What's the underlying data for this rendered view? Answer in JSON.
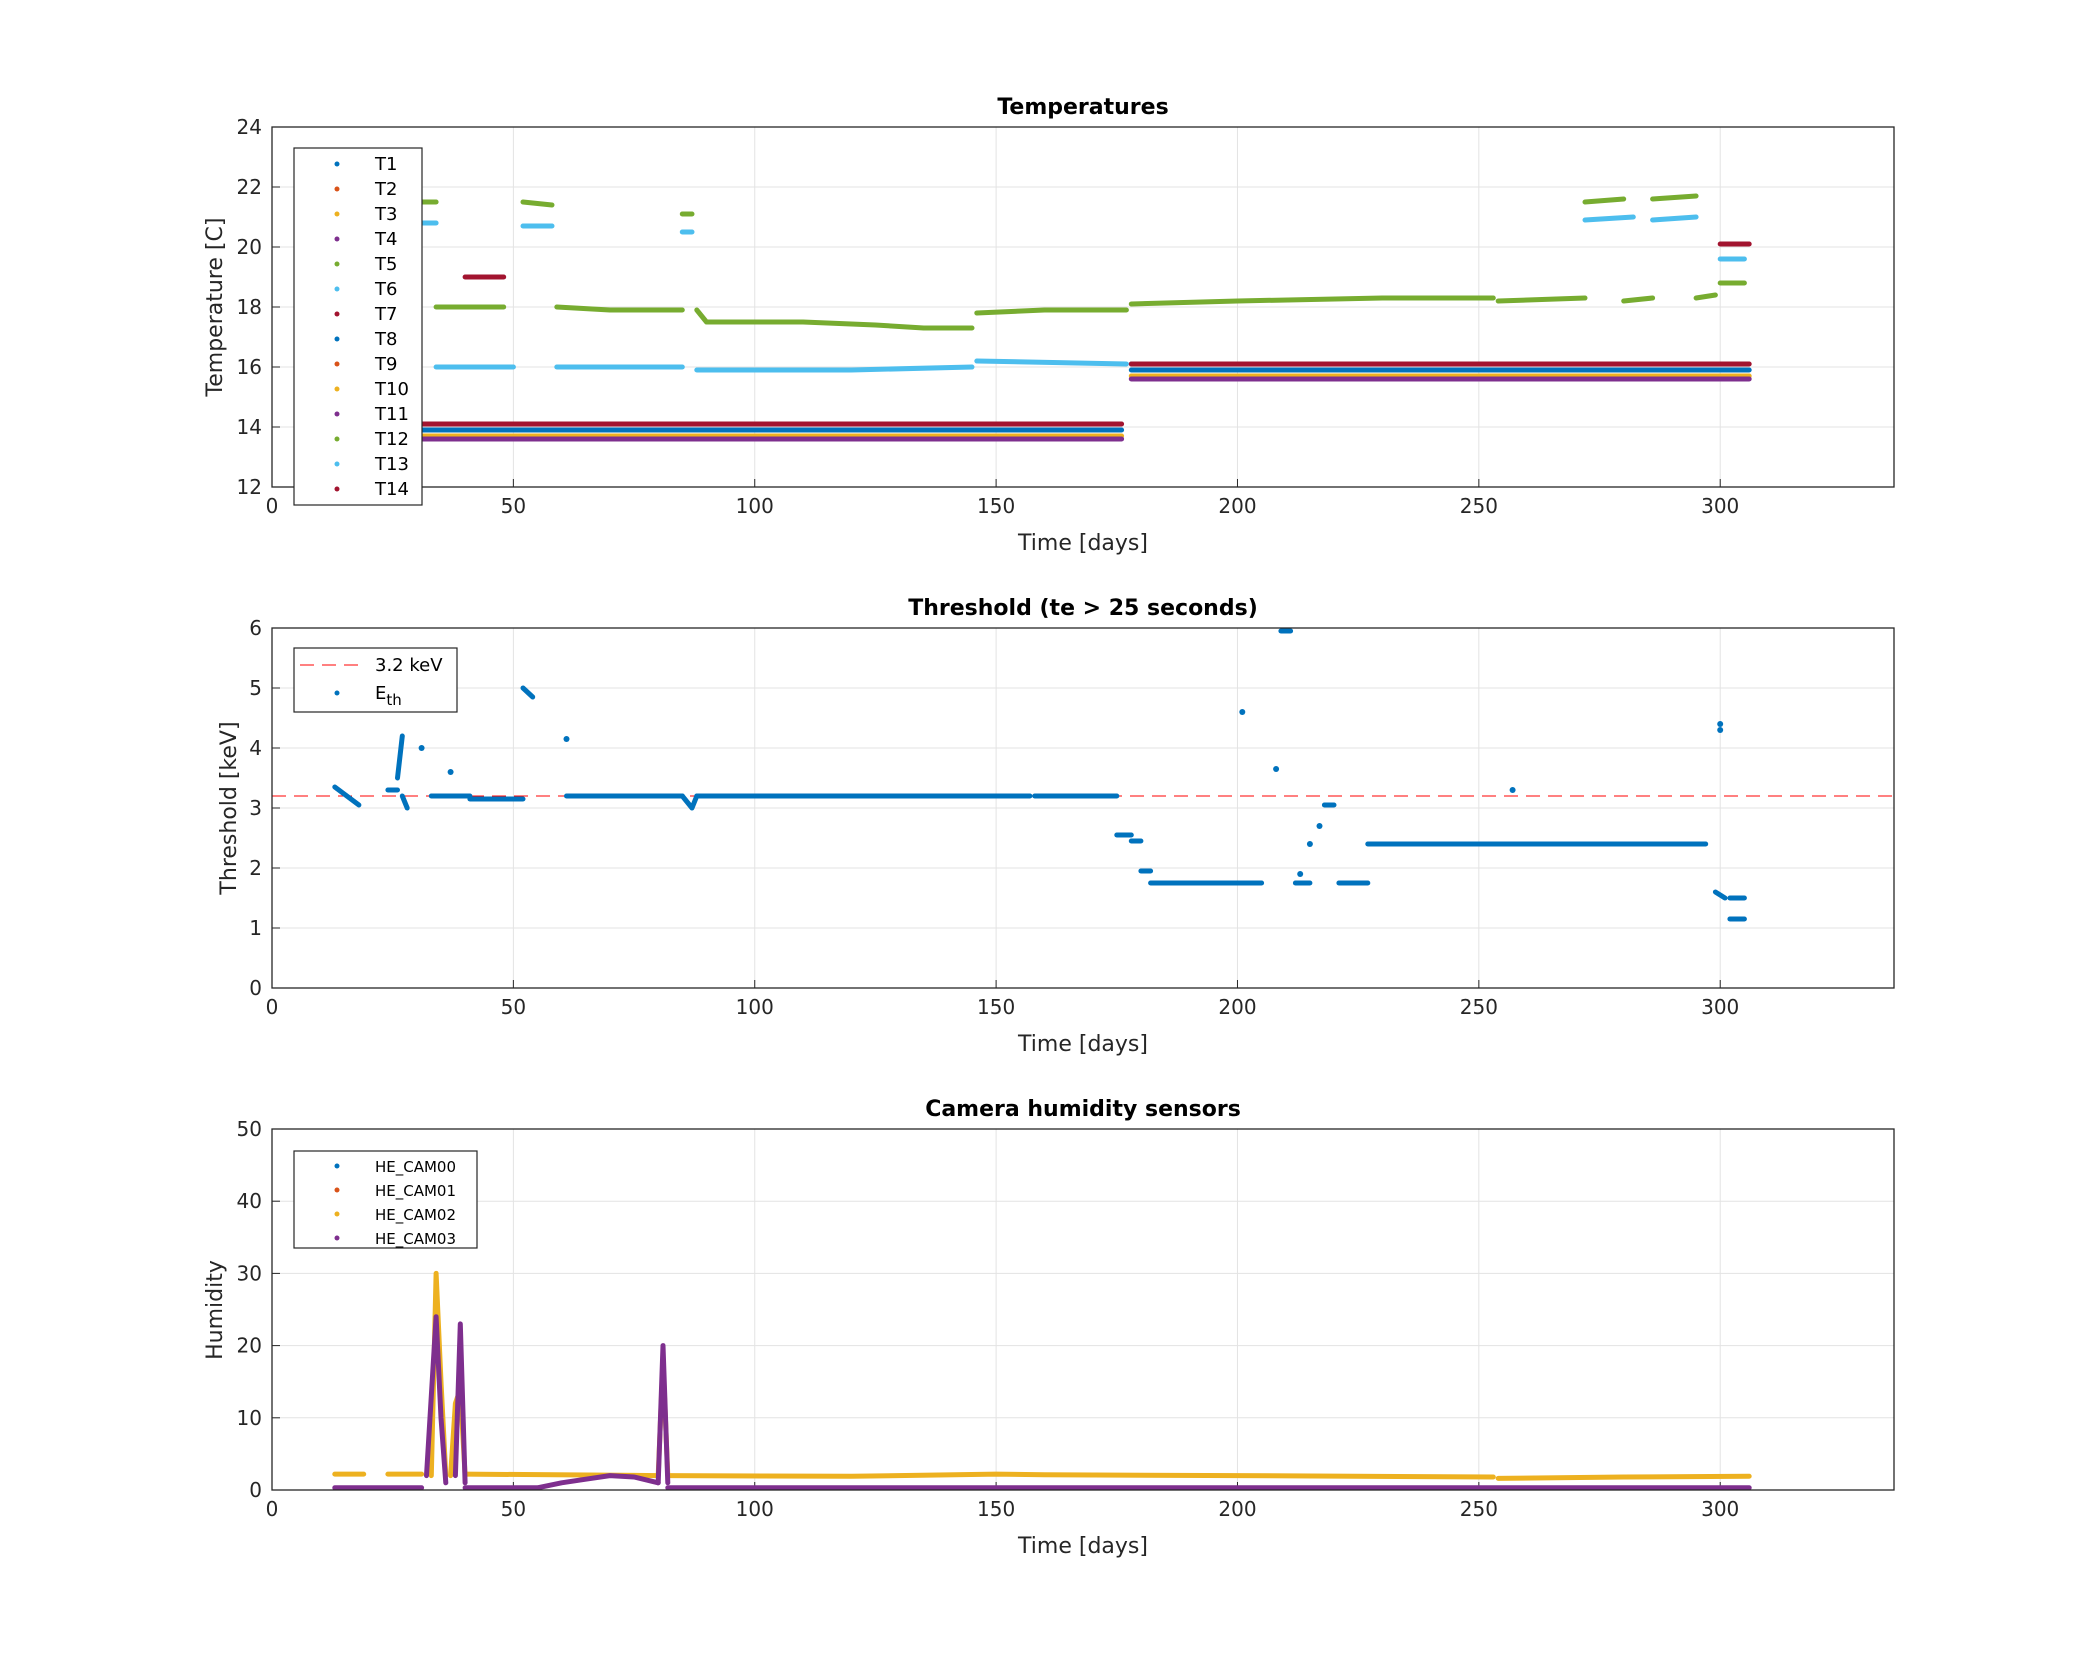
{
  "chart_data": [
    {
      "type": "scatter",
      "title": "Temperatures",
      "xlabel": "Time [days]",
      "ylabel": "Temperature [C]",
      "xlim": [
        0,
        336
      ],
      "ylim": [
        12,
        24
      ],
      "xticks": [
        "0",
        "50",
        "100",
        "150",
        "200",
        "250",
        "300"
      ],
      "yticks": [
        "12",
        "14",
        "16",
        "18",
        "20",
        "22",
        "24"
      ],
      "grid": true,
      "legend_position": "top-left",
      "legend": [
        "T1",
        "T2",
        "T3",
        "T4",
        "T5",
        "T6",
        "T7",
        "T8",
        "T9",
        "T10",
        "T11",
        "T12",
        "T13",
        "T14"
      ],
      "series": [
        {
          "name": "T5",
          "color": "#77AC30",
          "segments": [
            [
              [
                31,
                21.5
              ],
              [
                34,
                21.5
              ]
            ],
            [
              [
                34,
                18.0
              ],
              [
                48,
                18.0
              ]
            ],
            [
              [
                52,
                21.5
              ],
              [
                58,
                21.4
              ]
            ],
            [
              [
                59,
                18.0
              ],
              [
                70,
                17.9
              ],
              [
                85,
                17.9
              ]
            ],
            [
              [
                85,
                21.1
              ],
              [
                87,
                21.1
              ]
            ],
            [
              [
                88,
                17.9
              ],
              [
                90,
                17.5
              ],
              [
                110,
                17.5
              ],
              [
                125,
                17.4
              ],
              [
                135,
                17.3
              ],
              [
                145,
                17.3
              ]
            ],
            [
              [
                146,
                17.8
              ],
              [
                160,
                17.9
              ],
              [
                177,
                17.9
              ]
            ],
            [
              [
                178,
                18.1
              ],
              [
                200,
                18.2
              ],
              [
                230,
                18.3
              ],
              [
                253,
                18.3
              ]
            ],
            [
              [
                254,
                18.2
              ],
              [
                272,
                18.3
              ]
            ],
            [
              [
                272,
                21.5
              ],
              [
                280,
                21.6
              ]
            ],
            [
              [
                280,
                18.2
              ],
              [
                286,
                18.3
              ]
            ],
            [
              [
                286,
                21.6
              ],
              [
                295,
                21.7
              ]
            ],
            [
              [
                295,
                18.3
              ],
              [
                299,
                18.4
              ]
            ],
            [
              [
                300,
                18.8
              ],
              [
                305,
                18.8
              ]
            ]
          ]
        },
        {
          "name": "T6",
          "color": "#4DBEEE",
          "segments": [
            [
              [
                31,
                20.8
              ],
              [
                34,
                20.8
              ]
            ],
            [
              [
                34,
                16.0
              ],
              [
                50,
                16.0
              ]
            ],
            [
              [
                52,
                20.7
              ],
              [
                58,
                20.7
              ]
            ],
            [
              [
                59,
                16.0
              ],
              [
                85,
                16.0
              ]
            ],
            [
              [
                85,
                20.5
              ],
              [
                87,
                20.5
              ]
            ],
            [
              [
                88,
                15.9
              ],
              [
                120,
                15.9
              ],
              [
                145,
                16.0
              ]
            ],
            [
              [
                146,
                16.2
              ],
              [
                177,
                16.1
              ]
            ],
            [
              [
                178,
                16.1
              ],
              [
                253,
                16.1
              ]
            ],
            [
              [
                254,
                16.1
              ],
              [
                272,
                16.1
              ]
            ],
            [
              [
                272,
                20.9
              ],
              [
                282,
                21.0
              ]
            ],
            [
              [
                286,
                20.9
              ],
              [
                295,
                21.0
              ]
            ],
            [
              [
                295,
                16.1
              ],
              [
                300,
                16.1
              ]
            ],
            [
              [
                300,
                19.6
              ],
              [
                305,
                19.6
              ]
            ],
            [
              [
                300,
                16.1
              ],
              [
                305,
                16.1
              ]
            ]
          ]
        },
        {
          "name": "T1",
          "color": "#0072BD",
          "segments": [
            [
              [
                31,
                13.9
              ],
              [
                176,
                13.9
              ]
            ],
            [
              [
                178,
                15.9
              ],
              [
                306,
                15.9
              ]
            ]
          ]
        },
        {
          "name": "T3",
          "color": "#EDB120",
          "segments": [
            [
              [
                31,
                13.7
              ],
              [
                176,
                13.7
              ]
            ],
            [
              [
                178,
                15.7
              ],
              [
                306,
                15.7
              ]
            ]
          ]
        },
        {
          "name": "T4",
          "color": "#7E2F8E",
          "segments": [
            [
              [
                31,
                13.6
              ],
              [
                176,
                13.6
              ]
            ],
            [
              [
                178,
                15.6
              ],
              [
                306,
                15.6
              ]
            ]
          ]
        },
        {
          "name": "T7",
          "color": "#A2142F",
          "segments": [
            [
              [
                31,
                14.1
              ],
              [
                176,
                14.1
              ]
            ],
            [
              [
                178,
                16.1
              ],
              [
                306,
                16.1
              ]
            ],
            [
              [
                40,
                19.0
              ],
              [
                48,
                19.0
              ]
            ],
            [
              [
                300,
                20.1
              ],
              [
                306,
                20.1
              ]
            ]
          ]
        }
      ]
    },
    {
      "type": "scatter",
      "title": "Threshold (te > 25 seconds)",
      "xlabel": "Time [days]",
      "ylabel": "Threshold [keV]",
      "xlim": [
        0,
        336
      ],
      "ylim": [
        0,
        6
      ],
      "xticks": [
        "0",
        "50",
        "100",
        "150",
        "200",
        "250",
        "300"
      ],
      "yticks": [
        "0",
        "1",
        "2",
        "3",
        "4",
        "5",
        "6"
      ],
      "grid": true,
      "legend_position": "top-left",
      "legend": [
        "3.2 keV",
        "E",
        "th"
      ],
      "reference_line": {
        "name": "3.2 keV",
        "y": 3.2,
        "color": "#FF0000"
      },
      "series": [
        {
          "name": "E_th",
          "color": "#0072BD",
          "segments": [
            [
              [
                13,
                3.35
              ],
              [
                18,
                3.05
              ]
            ],
            [
              [
                24,
                3.3
              ],
              [
                26,
                3.3
              ]
            ],
            [
              [
                26,
                3.5
              ],
              [
                27,
                4.2
              ]
            ],
            [
              [
                27,
                3.2
              ],
              [
                28,
                3.0
              ]
            ],
            [
              [
                33,
                3.2
              ],
              [
                41,
                3.2
              ]
            ],
            [
              [
                41,
                3.15
              ],
              [
                52,
                3.15
              ]
            ],
            [
              [
                52,
                5.0
              ],
              [
                54,
                4.85
              ]
            ],
            [
              [
                61,
                3.2
              ],
              [
                85,
                3.2
              ]
            ],
            [
              [
                85,
                3.2
              ],
              [
                87,
                3.0
              ],
              [
                88,
                3.2
              ]
            ],
            [
              [
                88,
                3.2
              ],
              [
                157,
                3.2
              ]
            ],
            [
              [
                158,
                3.2
              ],
              [
                175,
                3.2
              ]
            ],
            [
              [
                175,
                2.55
              ],
              [
                178,
                2.55
              ]
            ],
            [
              [
                178,
                2.45
              ],
              [
                180,
                2.45
              ]
            ],
            [
              [
                180,
                1.95
              ],
              [
                182,
                1.95
              ]
            ],
            [
              [
                182,
                1.75
              ],
              [
                195,
                1.75
              ],
              [
                205,
                1.75
              ]
            ],
            [
              [
                209,
                5.95
              ],
              [
                211,
                5.95
              ]
            ],
            [
              [
                212,
                1.75
              ],
              [
                215,
                1.75
              ]
            ],
            [
              [
                218,
                3.05
              ],
              [
                220,
                3.05
              ]
            ],
            [
              [
                221,
                1.75
              ],
              [
                227,
                1.75
              ]
            ],
            [
              [
                227,
                2.4
              ],
              [
                297,
                2.4
              ]
            ],
            [
              [
                299,
                1.6
              ],
              [
                301,
                1.5
              ]
            ],
            [
              [
                302,
                1.5
              ],
              [
                305,
                1.5
              ]
            ],
            [
              [
                302,
                1.15
              ],
              [
                305,
                1.15
              ]
            ]
          ],
          "points": [
            [
              31,
              4.0
            ],
            [
              37,
              3.6
            ],
            [
              61,
              4.15
            ],
            [
              201,
              4.6
            ],
            [
              208,
              3.65
            ],
            [
              257,
              3.3
            ],
            [
              300,
              4.4
            ],
            [
              300,
              4.3
            ],
            [
              217,
              2.7
            ],
            [
              215,
              2.4
            ],
            [
              213,
              1.9
            ]
          ]
        }
      ]
    },
    {
      "type": "scatter",
      "title": "Camera humidity sensors",
      "xlabel": "Time [days]",
      "ylabel": "Humidity",
      "xlim": [
        0,
        336
      ],
      "ylim": [
        0,
        50
      ],
      "xticks": [
        "0",
        "50",
        "100",
        "150",
        "200",
        "250",
        "300"
      ],
      "yticks": [
        "0",
        "10",
        "20",
        "30",
        "40",
        "50"
      ],
      "grid": true,
      "legend_position": "top-left",
      "legend": [
        "HE_CAM00",
        "HE_CAM01",
        "HE_CAM02",
        "HE_CAM03"
      ],
      "series": [
        {
          "name": "HE_CAM02",
          "color": "#EDB120",
          "segments": [
            [
              [
                13,
                2.2
              ],
              [
                19,
                2.2
              ]
            ],
            [
              [
                24,
                2.2
              ],
              [
                31,
                2.2
              ]
            ],
            [
              [
                33,
                2
              ],
              [
                34,
                30
              ],
              [
                35,
                15
              ],
              [
                36,
                2
              ]
            ],
            [
              [
                37,
                2
              ],
              [
                38,
                12
              ],
              [
                39,
                14
              ],
              [
                40,
                2
              ]
            ],
            [
              [
                40,
                2.2
              ],
              [
                80,
                2.0
              ]
            ],
            [
              [
                80,
                2
              ],
              [
                81,
                18
              ],
              [
                82,
                2
              ]
            ],
            [
              [
                82,
                2.0
              ],
              [
                120,
                1.9
              ],
              [
                150,
                2.2
              ],
              [
                160,
                2.1
              ],
              [
                200,
                2.0
              ],
              [
                253,
                1.8
              ]
            ],
            [
              [
                254,
                1.6
              ],
              [
                280,
                1.8
              ],
              [
                306,
                1.9
              ]
            ]
          ]
        },
        {
          "name": "HE_CAM03",
          "color": "#7E2F8E",
          "segments": [
            [
              [
                13,
                0.3
              ],
              [
                31,
                0.3
              ]
            ],
            [
              [
                32,
                2
              ],
              [
                34,
                24
              ],
              [
                35,
                10
              ],
              [
                36,
                1
              ]
            ],
            [
              [
                38,
                2
              ],
              [
                39,
                23
              ],
              [
                40,
                1
              ]
            ],
            [
              [
                40,
                0.3
              ],
              [
                55,
                0.3
              ],
              [
                60,
                1.0
              ],
              [
                65,
                1.5
              ],
              [
                70,
                2.0
              ],
              [
                75,
                1.8
              ],
              [
                80,
                1.0
              ]
            ],
            [
              [
                80,
                1
              ],
              [
                81,
                20
              ],
              [
                82,
                1
              ]
            ],
            [
              [
                82,
                0.3
              ],
              [
                306,
                0.3
              ]
            ]
          ]
        }
      ]
    }
  ]
}
